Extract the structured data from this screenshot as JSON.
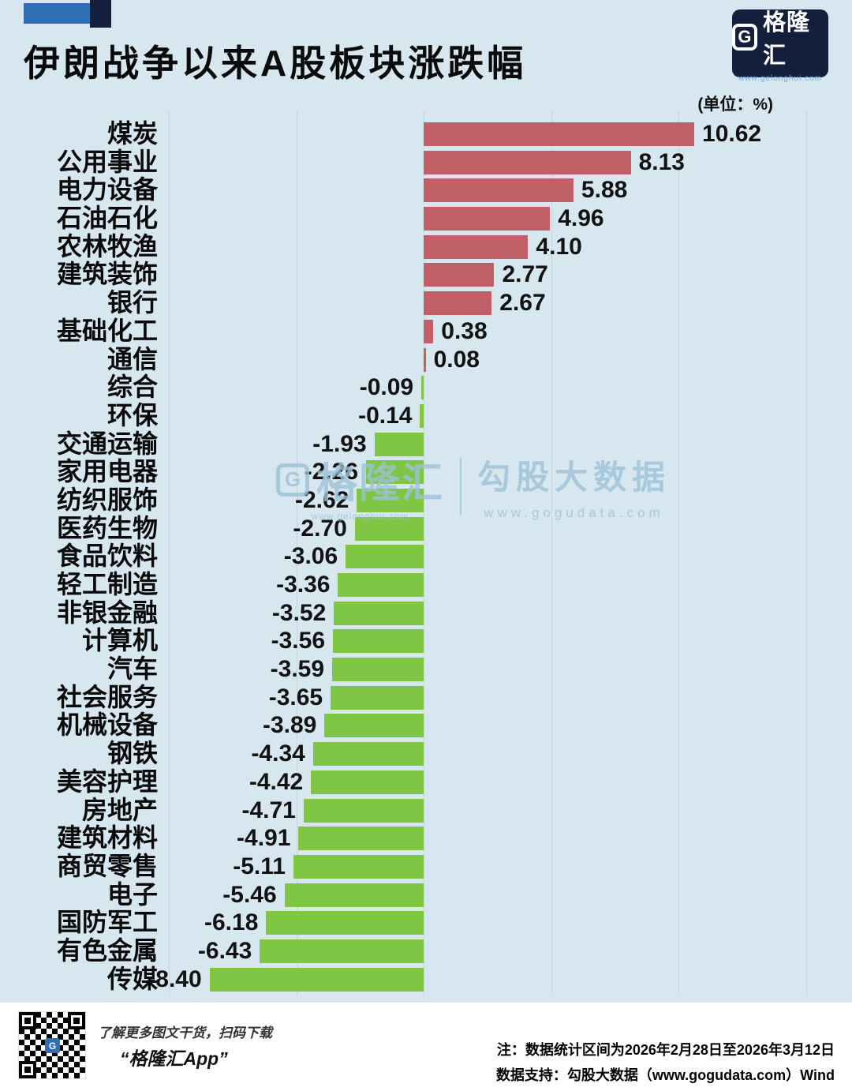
{
  "header": {
    "title": "伊朗战争以来A股板块涨跌幅",
    "unit_label": "(单位：%)",
    "logo": {
      "g": "G",
      "name": "格隆汇",
      "url": "www.gelonghui.com"
    }
  },
  "watermark": {
    "left_g": "G",
    "left_name": "格隆汇",
    "left_url": "www.gelonghui.com",
    "right_name": "勾股大数据",
    "right_url": "www.gogudata.com"
  },
  "footer": {
    "qr_caption_line1": "了解更多图文干货，扫码下载",
    "qr_caption_line2": "“格隆汇App”",
    "qr_center_g": "G",
    "note_line1": "注：数据统计区间为2026年2月28日至2026年3月12日",
    "note_line2": "数据支持：勾股大数据（www.gogudata.com）Wind"
  },
  "chart_data": {
    "type": "bar",
    "orientation": "horizontal",
    "title": "伊朗战争以来A股板块涨跌幅",
    "unit": "%",
    "categories": [
      "煤炭",
      "公用事业",
      "电力设备",
      "石油石化",
      "农林牧渔",
      "建筑装饰",
      "银行",
      "基础化工",
      "通信",
      "综合",
      "环保",
      "交通运输",
      "家用电器",
      "纺织服饰",
      "医药生物",
      "食品饮料",
      "轻工制造",
      "非银金融",
      "计算机",
      "汽车",
      "社会服务",
      "机械设备",
      "钢铁",
      "美容护理",
      "房地产",
      "建筑材料",
      "商贸零售",
      "电子",
      "国防军工",
      "有色金属",
      "传媒"
    ],
    "values": [
      10.62,
      8.13,
      5.88,
      4.96,
      4.1,
      2.77,
      2.67,
      0.38,
      0.08,
      -0.09,
      -0.14,
      -1.93,
      -2.26,
      -2.62,
      -2.7,
      -3.06,
      -3.36,
      -3.52,
      -3.56,
      -3.59,
      -3.65,
      -3.89,
      -4.34,
      -4.42,
      -4.71,
      -4.91,
      -5.11,
      -5.46,
      -6.18,
      -6.43,
      -8.4
    ],
    "xlim": [
      -10,
      15
    ],
    "gridlines": [
      -10,
      -5,
      0,
      5,
      10,
      15
    ],
    "grid": true,
    "legend": false,
    "colors": {
      "positive": "#c15f67",
      "negative": "#7ec644",
      "background": "#d7e7f0",
      "gridline": "#c3d6e1"
    }
  }
}
